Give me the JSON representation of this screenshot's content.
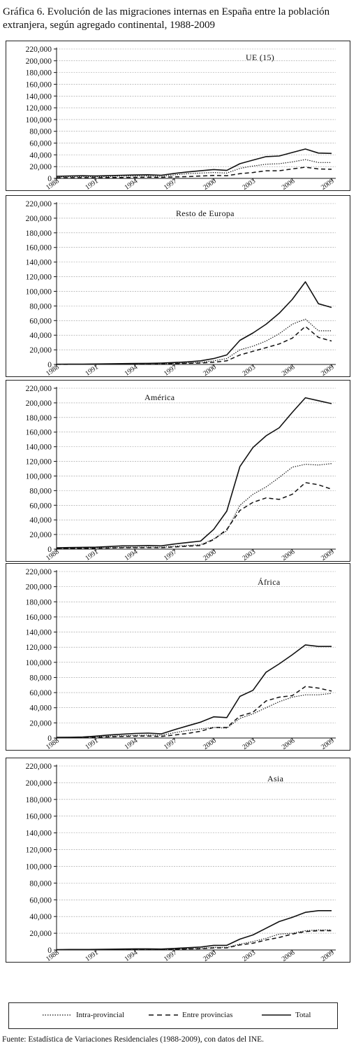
{
  "title": "Gráfica 6. Evolución de las migraciones internas en España entre la población extranjera, según agregado continental, 1988-2009",
  "footer": "Fuente: Estadística de Variaciones Residenciales (1988-2009), con datos del INE.",
  "legend": {
    "intra": "Intra-provincial",
    "entre": "Entre provincias",
    "total": "Total"
  },
  "chart_data": [
    {
      "type": "line",
      "title": "UE (15)",
      "x": [
        1988,
        1989,
        1990,
        1991,
        1992,
        1993,
        1994,
        1995,
        1996,
        1997,
        1998,
        1999,
        2000,
        2001,
        2002,
        2003,
        2004,
        2005,
        2006,
        2007,
        2008,
        2009
      ],
      "x_tick_labels": [
        "1988",
        "1991",
        "1994",
        "1997",
        "2000",
        "2003",
        "2006",
        "2009"
      ],
      "ylim": [
        0,
        220000
      ],
      "y_tick_labels": [
        "0",
        "20,000",
        "40,000",
        "60,000",
        "80,000",
        "100,000",
        "120,000",
        "140,000",
        "160,000",
        "180,000",
        "200,000",
        "220,000"
      ],
      "grid": true,
      "series": [
        {
          "name": "Intra-provincial",
          "style": "dotted",
          "values": [
            2500,
            3000,
            3200,
            2800,
            3200,
            3800,
            4000,
            4200,
            3500,
            6000,
            8000,
            9000,
            10000,
            9000,
            17000,
            21000,
            24000,
            25000,
            28000,
            32000,
            27000,
            27000
          ]
        },
        {
          "name": "Entre provincias",
          "style": "dashed",
          "values": [
            1000,
            1200,
            1300,
            1200,
            1400,
            1600,
            1800,
            2000,
            1800,
            2500,
            3000,
            4000,
            5000,
            4500,
            8000,
            10000,
            13000,
            13000,
            16000,
            19000,
            16000,
            15500
          ]
        },
        {
          "name": "Total",
          "style": "solid",
          "values": [
            3500,
            4200,
            4500,
            4000,
            4600,
            5400,
            5800,
            6200,
            5300,
            8500,
            11000,
            13000,
            15000,
            13500,
            25000,
            31000,
            37000,
            38000,
            44000,
            50000,
            43000,
            42500
          ]
        }
      ]
    },
    {
      "type": "line",
      "title": "Resto de Europa",
      "x": [
        1988,
        1989,
        1990,
        1991,
        1992,
        1993,
        1994,
        1995,
        1996,
        1997,
        1998,
        1999,
        2000,
        2001,
        2002,
        2003,
        2004,
        2005,
        2006,
        2007,
        2008,
        2009
      ],
      "x_tick_labels": [
        "1988",
        "1991",
        "1994",
        "1997",
        "2000",
        "2003",
        "2006",
        "2009"
      ],
      "ylim": [
        0,
        220000
      ],
      "y_tick_labels": [
        "0",
        "20,000",
        "40,000",
        "60,000",
        "80,000",
        "100,000",
        "120,000",
        "140,000",
        "160,000",
        "180,000",
        "200,000",
        "220,000"
      ],
      "grid": true,
      "series": [
        {
          "name": "Intra-provincial",
          "style": "dotted",
          "values": [
            200,
            300,
            300,
            400,
            500,
            600,
            700,
            800,
            1000,
            1500,
            2000,
            3000,
            5000,
            8000,
            20000,
            25000,
            32000,
            42000,
            55000,
            62000,
            46000,
            46000
          ]
        },
        {
          "name": "Entre provincias",
          "style": "dashed",
          "values": [
            100,
            200,
            200,
            300,
            400,
            500,
            600,
            700,
            900,
            1200,
            1500,
            2000,
            3000,
            5000,
            13000,
            18000,
            23000,
            28000,
            36000,
            52000,
            37000,
            32000
          ]
        },
        {
          "name": "Total",
          "style": "solid",
          "values": [
            300,
            500,
            500,
            700,
            900,
            1100,
            1300,
            1500,
            1900,
            2700,
            3500,
            5000,
            8000,
            13000,
            33000,
            43000,
            55000,
            70000,
            89000,
            113000,
            83000,
            78000
          ]
        }
      ]
    },
    {
      "type": "line",
      "title": "América",
      "x": [
        1988,
        1989,
        1990,
        1991,
        1992,
        1993,
        1994,
        1995,
        1996,
        1997,
        1998,
        1999,
        2000,
        2001,
        2002,
        2003,
        2004,
        2005,
        2006,
        2007,
        2008,
        2009
      ],
      "x_tick_labels": [
        "1988",
        "1991",
        "1994",
        "1997",
        "2000",
        "2003",
        "2006",
        "2009"
      ],
      "ylim": [
        0,
        220000
      ],
      "y_tick_labels": [
        "0",
        "20,000",
        "40,000",
        "60,000",
        "80,000",
        "100,000",
        "120,000",
        "140,000",
        "160,000",
        "180,000",
        "200,000",
        "220,000"
      ],
      "grid": true,
      "series": [
        {
          "name": "Intra-provincial",
          "style": "dotted",
          "values": [
            1000,
            1200,
            1400,
            1500,
            2000,
            2500,
            2500,
            2800,
            2500,
            4000,
            5000,
            6000,
            14000,
            25000,
            60000,
            75000,
            85000,
            98000,
            112000,
            116000,
            115000,
            117000
          ]
        },
        {
          "name": "Entre provincias",
          "style": "dashed",
          "values": [
            800,
            1000,
            1100,
            1200,
            1500,
            2000,
            2000,
            2200,
            2000,
            3000,
            4000,
            5000,
            13000,
            27000,
            53000,
            64000,
            70000,
            68000,
            75000,
            91000,
            88000,
            82000
          ]
        },
        {
          "name": "Total",
          "style": "solid",
          "values": [
            1800,
            2200,
            2500,
            2700,
            3500,
            4500,
            4500,
            5000,
            4500,
            7000,
            9000,
            11000,
            27000,
            52000,
            113000,
            139000,
            155000,
            166000,
            187000,
            207000,
            203000,
            199000
          ]
        }
      ]
    },
    {
      "type": "line",
      "title": "África",
      "x": [
        1988,
        1989,
        1990,
        1991,
        1992,
        1993,
        1994,
        1995,
        1996,
        1997,
        1998,
        1999,
        2000,
        2001,
        2002,
        2003,
        2004,
        2005,
        2006,
        2007,
        2008,
        2009
      ],
      "x_tick_labels": [
        "1988",
        "1991",
        "1994",
        "1997",
        "2000",
        "2003",
        "2006",
        "2009"
      ],
      "ylim": [
        0,
        220000
      ],
      "y_tick_labels": [
        "0",
        "20,000",
        "40,000",
        "60,000",
        "80,000",
        "100,000",
        "120,000",
        "140,000",
        "160,000",
        "180,000",
        "200,000",
        "220,000"
      ],
      "grid": true,
      "series": [
        {
          "name": "Intra-provincial",
          "style": "dotted",
          "values": [
            500,
            600,
            800,
            1500,
            2500,
            3000,
            3500,
            4000,
            3500,
            7000,
            10000,
            12000,
            14000,
            13000,
            26000,
            32000,
            40000,
            48000,
            54000,
            57000,
            57000,
            59000
          ]
        },
        {
          "name": "Entre provincias",
          "style": "dashed",
          "values": [
            300,
            400,
            500,
            1000,
            1500,
            2000,
            2500,
            2500,
            2000,
            4000,
            6000,
            9000,
            14000,
            14000,
            29000,
            34000,
            49000,
            54000,
            56000,
            68000,
            66000,
            62000
          ]
        },
        {
          "name": "Total",
          "style": "solid",
          "values": [
            800,
            1000,
            1300,
            2500,
            4000,
            5000,
            6000,
            6500,
            5500,
            11000,
            16000,
            21000,
            28000,
            27000,
            55000,
            63000,
            87000,
            98000,
            110000,
            123000,
            121000,
            121000
          ]
        }
      ]
    },
    {
      "type": "line",
      "title": "Asia",
      "x": [
        1988,
        1989,
        1990,
        1991,
        1992,
        1993,
        1994,
        1995,
        1996,
        1997,
        1998,
        1999,
        2000,
        2001,
        2002,
        2003,
        2004,
        2005,
        2006,
        2007,
        2008,
        2009
      ],
      "x_tick_labels": [
        "1988",
        "1991",
        "1994",
        "1997",
        "2000",
        "2003",
        "2006",
        "2009"
      ],
      "ylim": [
        0,
        220000
      ],
      "y_tick_labels": [
        "0",
        "20,000",
        "40,000",
        "60,000",
        "80,000",
        "100,000",
        "120,000",
        "140,000",
        "160,000",
        "180,000",
        "200,000",
        "220,000"
      ],
      "grid": true,
      "series": [
        {
          "name": "Intra-provincial",
          "style": "dotted",
          "values": [
            200,
            300,
            300,
            400,
            500,
            600,
            700,
            700,
            600,
            1000,
            1500,
            2000,
            3000,
            3000,
            7000,
            10000,
            14000,
            19000,
            20000,
            23000,
            24000,
            24000
          ]
        },
        {
          "name": "Entre provincias",
          "style": "dashed",
          "values": [
            200,
            300,
            300,
            300,
            400,
            500,
            600,
            600,
            500,
            800,
            1200,
            1500,
            2500,
            2500,
            6000,
            8000,
            12000,
            15000,
            19000,
            22000,
            23000,
            23000
          ]
        },
        {
          "name": "Total",
          "style": "solid",
          "values": [
            400,
            600,
            600,
            700,
            900,
            1100,
            1300,
            1300,
            1100,
            1800,
            2700,
            3500,
            5500,
            5500,
            13000,
            18000,
            26000,
            34000,
            39000,
            45000,
            47000,
            47000
          ]
        }
      ]
    }
  ]
}
